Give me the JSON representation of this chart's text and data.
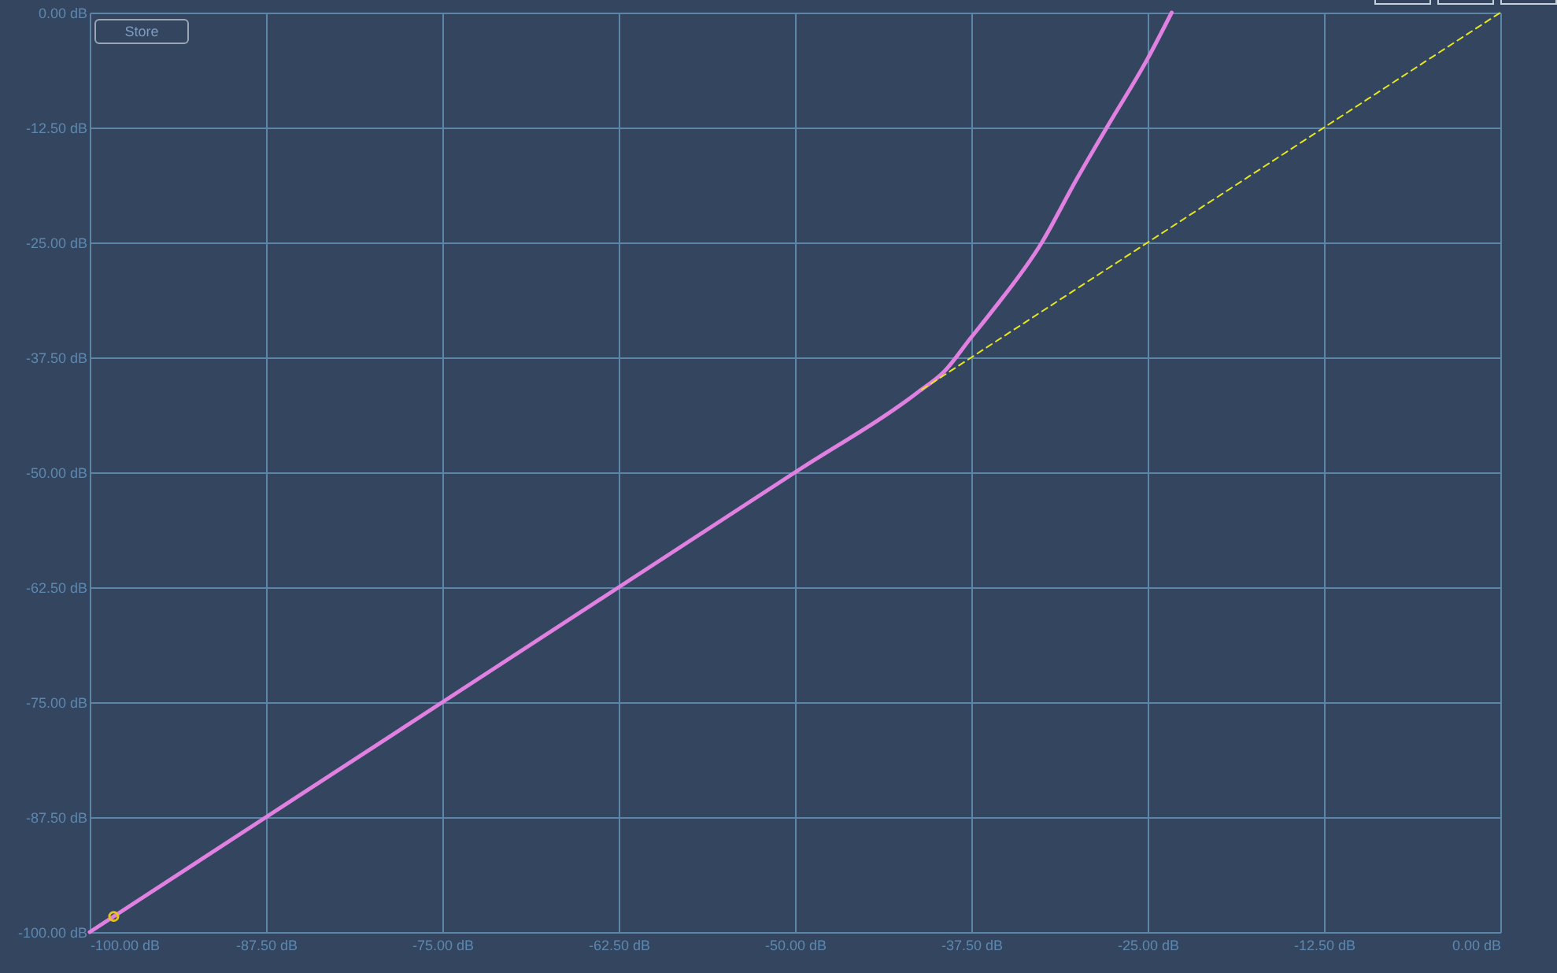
{
  "chart_data": {
    "type": "line",
    "annotations": [
      "Store"
    ],
    "xlim": [
      -100,
      0
    ],
    "ylim": [
      -100,
      0
    ],
    "xticks": [
      {
        "value": -100,
        "label": "-100.00 dB"
      },
      {
        "value": -87.5,
        "label": "-87.50 dB"
      },
      {
        "value": -75,
        "label": "-75.00 dB"
      },
      {
        "value": -62.5,
        "label": "-62.50 dB"
      },
      {
        "value": -50,
        "label": "-50.00 dB"
      },
      {
        "value": -37.5,
        "label": "-37.50 dB"
      },
      {
        "value": -25,
        "label": "-25.00 dB"
      },
      {
        "value": -12.5,
        "label": "-12.50 dB"
      },
      {
        "value": 0,
        "label": "0.00 dB"
      }
    ],
    "yticks": [
      {
        "value": -100,
        "label": "-100.00 dB"
      },
      {
        "value": -87.5,
        "label": "-87.50 dB"
      },
      {
        "value": -75,
        "label": "-75.00 dB"
      },
      {
        "value": -62.5,
        "label": "-62.50 dB"
      },
      {
        "value": -50,
        "label": "-50.00 dB"
      },
      {
        "value": -37.5,
        "label": "-37.50 dB"
      },
      {
        "value": -25,
        "label": "-25.00 dB"
      },
      {
        "value": -12.5,
        "label": "-12.50 dB"
      },
      {
        "value": 0,
        "label": "0.00 dB"
      }
    ],
    "grid": true,
    "series": [
      {
        "color": "#e080e0",
        "line_style": "solid",
        "x": [
          -100,
          -75,
          -50,
          -41.3,
          -39.4,
          -37.5,
          -36.2,
          -32.5,
          -30.1,
          -27.9,
          -25.0,
          -23.3
        ],
        "values": [
          -100,
          -75,
          -50,
          -41.3,
          -39.0,
          -35.3,
          -32.8,
          -25.0,
          -18.3,
          -12.5,
          -5.0,
          0
        ]
      },
      {
        "color": "#e6e61e",
        "line_style": "dashed",
        "x": [
          -41,
          0
        ],
        "values": [
          -41,
          0
        ]
      },
      {
        "type": "scatter",
        "color": "#e6c21e",
        "marker": "circle",
        "x": [
          -98.3
        ],
        "values": [
          -98.3
        ]
      }
    ]
  }
}
